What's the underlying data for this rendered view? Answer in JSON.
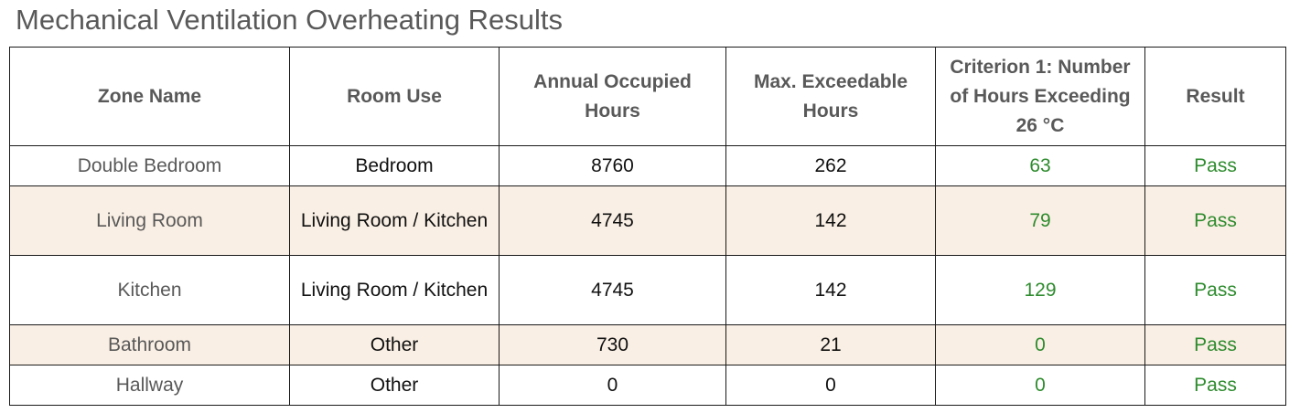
{
  "title": "Mechanical Ventilation Overheating Results",
  "colors": {
    "pass_green": "#2e8b2e",
    "shaded_row": "#faefe4",
    "header_text": "#595959"
  },
  "table": {
    "headers": {
      "zone_name": "Zone Name",
      "room_use": "Room Use",
      "annual_occupied_hours": "Annual Occupied Hours",
      "max_exceedable_hours": "Max. Exceedable Hours",
      "criterion_1": "Criterion 1: Number of  Hours Exceeding 26 °C",
      "result": "Result"
    },
    "rows": [
      {
        "zone": "Double Bedroom",
        "room_use": "Bedroom",
        "annual": "8760",
        "max_exceed": "262",
        "criterion": "63",
        "result": "Pass"
      },
      {
        "zone": "Living Room",
        "room_use": "Living Room / Kitchen",
        "annual": "4745",
        "max_exceed": "142",
        "criterion": "79",
        "result": "Pass"
      },
      {
        "zone": "Kitchen",
        "room_use": "Living Room / Kitchen",
        "annual": "4745",
        "max_exceed": "142",
        "criterion": "129",
        "result": "Pass"
      },
      {
        "zone": "Bathroom",
        "room_use": "Other",
        "annual": "730",
        "max_exceed": "21",
        "criterion": "0",
        "result": "Pass"
      },
      {
        "zone": "Hallway",
        "room_use": "Other",
        "annual": "0",
        "max_exceed": "0",
        "criterion": "0",
        "result": "Pass"
      }
    ]
  }
}
